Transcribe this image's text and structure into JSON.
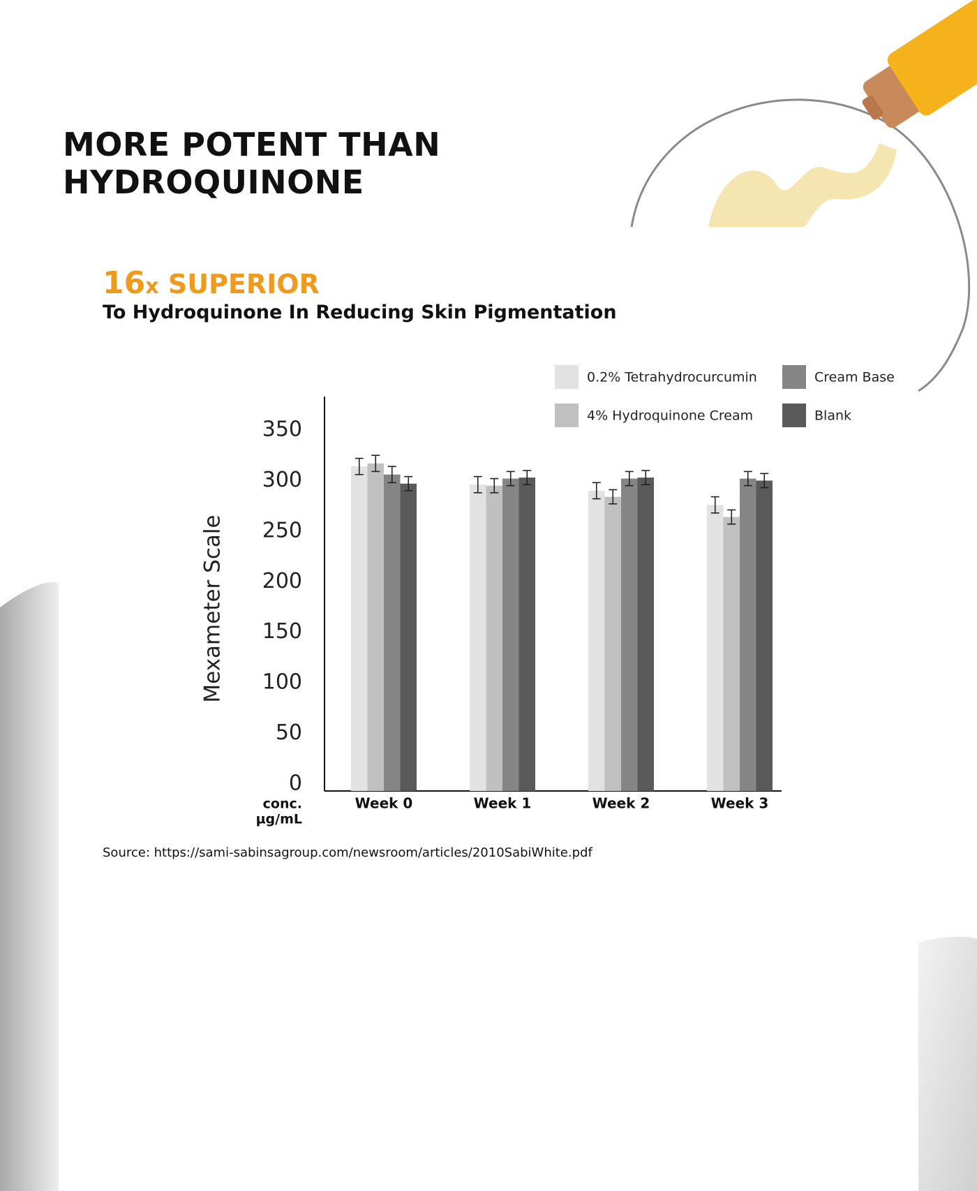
{
  "header": {
    "headline": "MORE POTENT THAN HYDROQUINONE",
    "superior_number": "16",
    "superior_x": "x",
    "superior_word": " SUPERIOR",
    "subheading": "To Hydroquinone In Reducing Skin Pigmentation"
  },
  "colors": {
    "accent": "#ee9a1c",
    "tube_yellow": "#f6b21a",
    "cap_gold": "#c98a5b"
  },
  "source": "Source: https://sami-sabinsagroup.com/newsroom/articles/2010SabiWhite.pdf",
  "chart_data": {
    "type": "bar",
    "ylabel": "Mexameter Scale",
    "x_unit_label": [
      "conc.",
      "µg/mL"
    ],
    "ylim": [
      0,
      350
    ],
    "yticks": [
      0,
      50,
      100,
      150,
      200,
      250,
      300,
      350
    ],
    "grid": false,
    "legend_position": "top-right",
    "categories": [
      "Week 0",
      "Week 1",
      "Week 2",
      "Week 3"
    ],
    "series": [
      {
        "name": "0.2% Tetrahydrocurcumin",
        "color": "#e2e2e2",
        "values": [
          314,
          296,
          290,
          276
        ],
        "errors": [
          8,
          8,
          8,
          8
        ]
      },
      {
        "name": "4% Hydroquinone Cream",
        "color": "#c0c0c0",
        "values": [
          317,
          295,
          284,
          264
        ],
        "errors": [
          8,
          7,
          7,
          7
        ]
      },
      {
        "name": "Cream Base",
        "color": "#858585",
        "values": [
          306,
          302,
          302,
          302
        ],
        "errors": [
          8,
          7,
          7,
          7
        ]
      },
      {
        "name": "Blank",
        "color": "#5a5a5a",
        "values": [
          297,
          303,
          303,
          300
        ],
        "errors": [
          7,
          7,
          7,
          7
        ]
      }
    ]
  }
}
